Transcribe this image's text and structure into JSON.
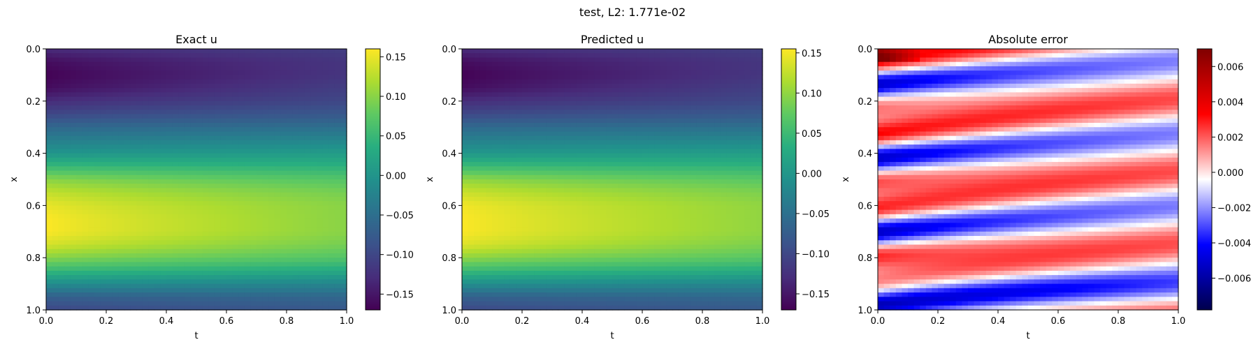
{
  "figure": {
    "suptitle": "test, L2: 1.771e-02"
  },
  "chart_data": [
    {
      "type": "heatmap",
      "title": "Exact u",
      "xlabel": "t",
      "ylabel": "x",
      "xlim": [
        0.0,
        1.0
      ],
      "ylim": [
        1.0,
        0.0
      ],
      "x_ticks": [
        "0.0",
        "0.2",
        "0.4",
        "0.6",
        "0.8",
        "1.0"
      ],
      "y_ticks": [
        "0.0",
        "0.2",
        "0.4",
        "0.6",
        "0.8",
        "1.0"
      ],
      "colormap": "viridis",
      "clim": [
        -0.17,
        0.16
      ],
      "colorbar_ticks": [
        0.15,
        0.1,
        0.05,
        0.0,
        -0.05,
        -0.1,
        -0.15
      ],
      "colorbar_labels": [
        "0.15",
        "0.10",
        "0.05",
        "0.00",
        "−0.05",
        "−0.10",
        "−0.15"
      ],
      "x_profile": [
        0.0,
        0.05,
        0.1,
        0.15,
        0.2,
        0.25,
        0.3,
        0.35,
        0.4,
        0.45,
        0.5,
        0.55,
        0.6,
        0.65,
        0.7,
        0.75,
        0.8,
        0.85,
        0.9,
        0.95,
        1.0
      ],
      "u_at_t0": [
        -0.13,
        -0.16,
        -0.17,
        -0.16,
        -0.13,
        -0.1,
        -0.06,
        -0.03,
        0.0,
        0.05,
        0.1,
        0.13,
        0.15,
        0.16,
        0.16,
        0.14,
        0.1,
        0.05,
        -0.01,
        -0.07,
        -0.1
      ],
      "u_at_t1": [
        -0.11,
        -0.12,
        -0.12,
        -0.11,
        -0.1,
        -0.08,
        -0.05,
        -0.02,
        0.01,
        0.04,
        0.07,
        0.09,
        0.1,
        0.1,
        0.1,
        0.09,
        0.07,
        0.03,
        -0.02,
        -0.06,
        -0.08
      ]
    },
    {
      "type": "heatmap",
      "title": "Predicted u",
      "xlabel": "t",
      "ylabel": "x",
      "xlim": [
        0.0,
        1.0
      ],
      "ylim": [
        1.0,
        0.0
      ],
      "x_ticks": [
        "0.0",
        "0.2",
        "0.4",
        "0.6",
        "0.8",
        "1.0"
      ],
      "y_ticks": [
        "0.0",
        "0.2",
        "0.4",
        "0.6",
        "0.8",
        "1.0"
      ],
      "colormap": "viridis",
      "clim": [
        -0.17,
        0.155
      ],
      "colorbar_ticks": [
        0.15,
        0.1,
        0.05,
        0.0,
        -0.05,
        -0.1,
        -0.15
      ],
      "colorbar_labels": [
        "0.15",
        "0.10",
        "0.05",
        "0.00",
        "−0.05",
        "−0.10",
        "−0.15"
      ],
      "x_profile": [
        0.0,
        0.05,
        0.1,
        0.15,
        0.2,
        0.25,
        0.3,
        0.35,
        0.4,
        0.45,
        0.5,
        0.55,
        0.6,
        0.65,
        0.7,
        0.75,
        0.8,
        0.85,
        0.9,
        0.95,
        1.0
      ],
      "u_at_t0": [
        -0.13,
        -0.16,
        -0.17,
        -0.16,
        -0.13,
        -0.1,
        -0.06,
        -0.03,
        0.0,
        0.05,
        0.1,
        0.13,
        0.15,
        0.155,
        0.155,
        0.14,
        0.1,
        0.05,
        -0.01,
        -0.07,
        -0.1
      ],
      "u_at_t1": [
        -0.11,
        -0.12,
        -0.12,
        -0.11,
        -0.1,
        -0.08,
        -0.05,
        -0.02,
        0.01,
        0.04,
        0.07,
        0.09,
        0.1,
        0.1,
        0.1,
        0.09,
        0.07,
        0.03,
        -0.02,
        -0.06,
        -0.08
      ]
    },
    {
      "type": "heatmap",
      "title": "Absolute error",
      "xlabel": "t",
      "ylabel": "x",
      "xlim": [
        0.0,
        1.0
      ],
      "ylim": [
        1.0,
        0.0
      ],
      "x_ticks": [
        "0.0",
        "0.2",
        "0.4",
        "0.6",
        "0.8",
        "1.0"
      ],
      "y_ticks": [
        "0.0",
        "0.2",
        "0.4",
        "0.6",
        "0.8",
        "1.0"
      ],
      "colormap": "seismic",
      "clim": [
        -0.0078,
        0.007
      ],
      "colorbar_ticks": [
        0.006,
        0.004,
        0.002,
        0.0,
        -0.002,
        -0.004,
        -0.006
      ],
      "colorbar_labels": [
        "0.006",
        "0.004",
        "0.002",
        "0.000",
        "−0.002",
        "−0.004",
        "−0.006"
      ]
    }
  ]
}
